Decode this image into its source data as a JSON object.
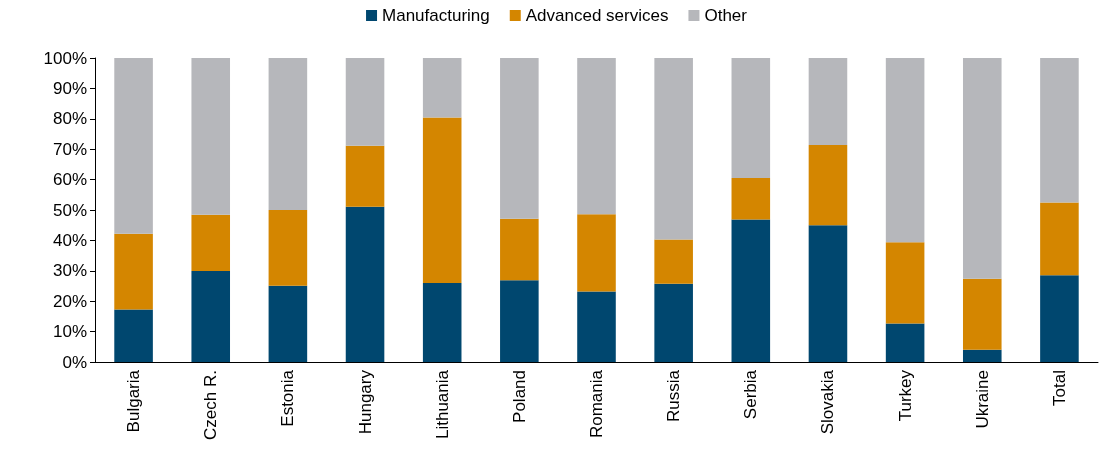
{
  "chart_data": {
    "type": "bar",
    "stacked": true,
    "legend": "top",
    "grid": false,
    "categories": [
      "Bulgaria",
      "Czech R.",
      "Estonia",
      "Hungary",
      "Lithuania",
      "Poland",
      "Romania",
      "Russia",
      "Serbia",
      "Slovakia",
      "Turkey",
      "Ukraine",
      "Total"
    ],
    "series": [
      {
        "name": "Manufacturing",
        "color": "#00476f",
        "values": [
          17.3,
          29.9,
          25.1,
          51.1,
          26.0,
          26.9,
          23.2,
          25.7,
          46.9,
          45.0,
          12.7,
          4.0,
          28.5
        ]
      },
      {
        "name": "Advanced services",
        "color": "#d48600",
        "values": [
          24.9,
          18.5,
          24.9,
          20.0,
          54.4,
          20.2,
          25.4,
          14.6,
          13.6,
          26.4,
          26.7,
          23.4,
          24.0
        ]
      },
      {
        "name": "Other",
        "color": "#b6b7bb",
        "values": [
          57.8,
          51.6,
          50.0,
          28.9,
          19.6,
          52.9,
          51.4,
          59.7,
          39.5,
          28.6,
          60.6,
          72.6,
          47.5
        ]
      }
    ],
    "ylim": [
      0,
      100
    ],
    "yticks": [
      {
        "value": 0,
        "label": "0%"
      },
      {
        "value": 10,
        "label": "10%"
      },
      {
        "value": 20,
        "label": "20%"
      },
      {
        "value": 30,
        "label": "30%"
      },
      {
        "value": 40,
        "label": "40%"
      },
      {
        "value": 50,
        "label": "50%"
      },
      {
        "value": 60,
        "label": "60%"
      },
      {
        "value": 70,
        "label": "70%"
      },
      {
        "value": 80,
        "label": "80%"
      },
      {
        "value": 90,
        "label": "90%"
      },
      {
        "value": 100,
        "label": "100%"
      }
    ]
  }
}
